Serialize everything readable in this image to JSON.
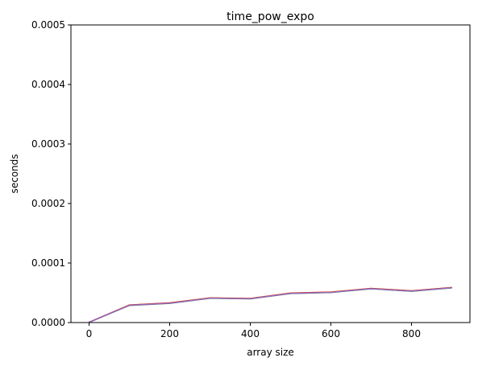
{
  "chart_data": {
    "type": "line",
    "title": "time_pow_expo",
    "xlabel": "array size",
    "ylabel": "seconds",
    "xlim": [
      -45,
      945
    ],
    "ylim": [
      0,
      0.0005
    ],
    "x_ticks": [
      0,
      200,
      400,
      600,
      800
    ],
    "x_tick_labels": [
      "0",
      "200",
      "400",
      "600",
      "800"
    ],
    "y_ticks": [
      0,
      0.0001,
      0.0002,
      0.0003,
      0.0004,
      0.0005
    ],
    "y_tick_labels": [
      "0.0000",
      "0.0001",
      "0.0002",
      "0.0003",
      "0.0004",
      "0.0005"
    ],
    "grid": false,
    "x": [
      0,
      100,
      200,
      300,
      400,
      500,
      600,
      700,
      800,
      900
    ],
    "series": [
      {
        "color": "#1f77b4",
        "values": [
          5e-07,
          2.92e-05,
          3.27e-05,
          4.12e-05,
          4.02e-05,
          4.92e-05,
          5.09e-05,
          5.71e-05,
          5.3e-05,
          5.87e-05
        ]
      },
      {
        "color": "#ff7f0e",
        "values": [
          5e-07,
          2.96e-05,
          3.31e-05,
          4.15e-05,
          4.05e-05,
          4.96e-05,
          5.13e-05,
          5.74e-05,
          5.34e-05,
          5.9e-05
        ]
      },
      {
        "color": "#2ca02c",
        "values": [
          5e-07,
          2.88e-05,
          3.23e-05,
          4.08e-05,
          3.98e-05,
          4.88e-05,
          5.05e-05,
          5.67e-05,
          5.26e-05,
          5.83e-05
        ]
      },
      {
        "color": "#d62728",
        "values": [
          5e-07,
          2.94e-05,
          3.29e-05,
          4.13e-05,
          4.03e-05,
          4.94e-05,
          5.11e-05,
          5.72e-05,
          5.32e-05,
          5.88e-05
        ]
      },
      {
        "color": "#9467bd",
        "values": [
          5e-07,
          2.9e-05,
          3.25e-05,
          4.1e-05,
          4e-05,
          4.9e-05,
          5.07e-05,
          5.69e-05,
          5.28e-05,
          5.85e-05
        ]
      }
    ]
  }
}
